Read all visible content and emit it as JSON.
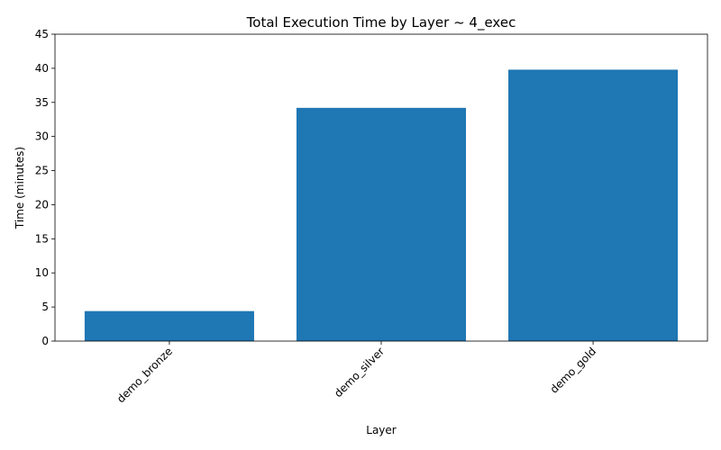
{
  "chart_data": {
    "type": "bar",
    "title": "Total Execution Time by Layer ~ 4_exec",
    "xlabel": "Layer",
    "ylabel": "Time (minutes)",
    "categories": [
      "demo_bronze",
      "demo_silver",
      "demo_gold"
    ],
    "values": [
      4.4,
      34.2,
      39.8
    ],
    "ylim": [
      0,
      45
    ],
    "yticks": [
      0,
      5,
      10,
      15,
      20,
      25,
      30,
      35,
      40,
      45
    ],
    "bar_color": "#1f77b4",
    "grid": false,
    "legend": "none",
    "xtick_rotation": 45
  }
}
